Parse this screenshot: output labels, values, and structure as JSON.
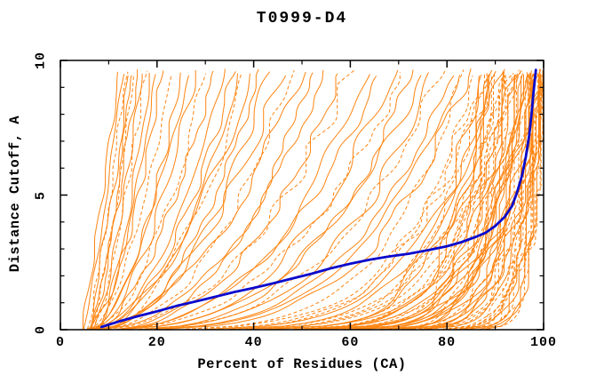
{
  "title": "T0999-D4",
  "chart_data": {
    "type": "line",
    "title": "T0999-D4",
    "xlabel": "Percent of Residues (CA)",
    "ylabel": "Distance Cutoff, A",
    "xlim": [
      0,
      100
    ],
    "ylim": [
      0,
      10
    ],
    "grid": false,
    "legend": "none",
    "box_ticks_mirrored": true,
    "xticks": {
      "major": [
        0,
        20,
        40,
        60,
        80,
        100
      ],
      "minor": [
        10,
        30,
        50,
        70,
        90
      ]
    },
    "yticks": {
      "major": [
        0,
        5,
        10
      ],
      "minor": [
        1,
        2,
        3,
        4,
        6,
        7,
        8,
        9
      ]
    },
    "colors": {
      "ensemble": "#ff8512",
      "highlight": "#0a0acd",
      "axis": "#000000",
      "background": "#ffffff"
    },
    "highlight_series": {
      "name": "highlighted-model-curve",
      "color": "#0a0acd",
      "points": [
        [
          8.5,
          0.1
        ],
        [
          12,
          0.3
        ],
        [
          16,
          0.5
        ],
        [
          20,
          0.68
        ],
        [
          24,
          0.88
        ],
        [
          28,
          1.05
        ],
        [
          32,
          1.22
        ],
        [
          36,
          1.4
        ],
        [
          40,
          1.55
        ],
        [
          44,
          1.72
        ],
        [
          48,
          1.9
        ],
        [
          52,
          2.08
        ],
        [
          56,
          2.28
        ],
        [
          60,
          2.45
        ],
        [
          64,
          2.6
        ],
        [
          68,
          2.72
        ],
        [
          72,
          2.82
        ],
        [
          76,
          2.95
        ],
        [
          80,
          3.1
        ],
        [
          83,
          3.25
        ],
        [
          86,
          3.45
        ],
        [
          88,
          3.6
        ],
        [
          90,
          3.85
        ],
        [
          92,
          4.2
        ],
        [
          93.5,
          4.6
        ],
        [
          94.5,
          5.1
        ],
        [
          95.5,
          5.7
        ],
        [
          96.3,
          6.4
        ],
        [
          97,
          7.2
        ],
        [
          97.5,
          8.0
        ],
        [
          97.9,
          8.8
        ],
        [
          98.2,
          9.3
        ],
        [
          98.4,
          9.65
        ]
      ]
    },
    "ensemble_series": {
      "name": "model-curves",
      "color": "#ff8512",
      "count": 104,
      "y_top": 9.55,
      "curve_params_format": [
        "x_at_bottom_pct",
        "x_at_top_pct",
        "shape_exponent",
        "dashed"
      ],
      "curves": [
        [
          5,
          13,
          0.9,
          0
        ],
        [
          5.5,
          13.6,
          0.8,
          1
        ],
        [
          5.8,
          14.2,
          0.85,
          0
        ],
        [
          6,
          14.8,
          0.7,
          0
        ],
        [
          6.2,
          15.3,
          0.75,
          1
        ],
        [
          6.5,
          16,
          0.8,
          0
        ],
        [
          6.8,
          16.8,
          0.7,
          0
        ],
        [
          7,
          17.6,
          0.75,
          1
        ],
        [
          7.4,
          18.6,
          0.65,
          0
        ],
        [
          7.8,
          19.8,
          0.7,
          0
        ],
        [
          4.5,
          12.2,
          0.95,
          0
        ],
        [
          5,
          21,
          0.55,
          0
        ],
        [
          6,
          23,
          0.6,
          1
        ],
        [
          5,
          25,
          0.5,
          0
        ],
        [
          7,
          26.5,
          0.65,
          0
        ],
        [
          6,
          28,
          0.55,
          0
        ],
        [
          5,
          30,
          0.5,
          1
        ],
        [
          7,
          32,
          0.6,
          0
        ],
        [
          6,
          34,
          0.5,
          0
        ],
        [
          8,
          36,
          0.55,
          0
        ],
        [
          5,
          37,
          0.45,
          0
        ],
        [
          7,
          38.5,
          0.5,
          1
        ],
        [
          6,
          40,
          0.55,
          0
        ],
        [
          8,
          41.5,
          0.5,
          0
        ],
        [
          6,
          43,
          0.45,
          0
        ],
        [
          5,
          46,
          0.5,
          0
        ],
        [
          7,
          48,
          0.45,
          1
        ],
        [
          6,
          50,
          0.5,
          0
        ],
        [
          8,
          52,
          0.4,
          0
        ],
        [
          6,
          55,
          0.45,
          0
        ],
        [
          7,
          58,
          0.4,
          0
        ],
        [
          5,
          60,
          0.42,
          1
        ],
        [
          8,
          63,
          0.38,
          0
        ],
        [
          6,
          66,
          0.4,
          0
        ],
        [
          7,
          69,
          0.35,
          0
        ],
        [
          5,
          71,
          0.38,
          1
        ],
        [
          8,
          73,
          0.33,
          0
        ],
        [
          6,
          75,
          0.36,
          0
        ],
        [
          7,
          77,
          0.3,
          0
        ],
        [
          6,
          79,
          0.32,
          1
        ],
        [
          8,
          81,
          0.3,
          0
        ],
        [
          6,
          82.5,
          0.28,
          0
        ],
        [
          7,
          83.5,
          0.22,
          1
        ],
        [
          4,
          84.5,
          0.25,
          0
        ],
        [
          6,
          85.5,
          0.18,
          1
        ],
        [
          5,
          86.5,
          0.12,
          0
        ],
        [
          7,
          87,
          0.2,
          1
        ],
        [
          4,
          87.5,
          0.09,
          0
        ],
        [
          8,
          88,
          0.15,
          1
        ],
        [
          5,
          88.4,
          0.06,
          0
        ],
        [
          6,
          88.8,
          0.22,
          1
        ],
        [
          4,
          89.1,
          0.1,
          0
        ],
        [
          7,
          89.4,
          0.05,
          1
        ],
        [
          5,
          89.7,
          0.17,
          0
        ],
        [
          6,
          90,
          0.08,
          1
        ],
        [
          4,
          90.3,
          0.13,
          0
        ],
        [
          8,
          90.6,
          0.04,
          1
        ],
        [
          5,
          90.9,
          0.2,
          0
        ],
        [
          6,
          91.2,
          0.11,
          1
        ],
        [
          4,
          91.5,
          0.07,
          0
        ],
        [
          7,
          91.8,
          0.16,
          1
        ],
        [
          5,
          92.1,
          0.05,
          0
        ],
        [
          6,
          92.4,
          0.12,
          1
        ],
        [
          4,
          92.7,
          0.09,
          0
        ],
        [
          8,
          93,
          0.18,
          1
        ],
        [
          5,
          93.3,
          0.06,
          0
        ],
        [
          6,
          93.6,
          0.14,
          1
        ],
        [
          4,
          93.9,
          0.04,
          0
        ],
        [
          7,
          94.2,
          0.1,
          1
        ],
        [
          5,
          94.5,
          0.07,
          0
        ],
        [
          6,
          94.8,
          0.16,
          1
        ],
        [
          4,
          95.1,
          0.05,
          0
        ],
        [
          8,
          95.4,
          0.12,
          1
        ],
        [
          5,
          95.7,
          0.08,
          0
        ],
        [
          6,
          96,
          0.04,
          1
        ],
        [
          4,
          96.2,
          0.14,
          0
        ],
        [
          7,
          96.4,
          0.06,
          1
        ],
        [
          5,
          96.6,
          0.1,
          0
        ],
        [
          6,
          96.8,
          0.03,
          1
        ],
        [
          4,
          97,
          0.12,
          0
        ],
        [
          8,
          97.2,
          0.05,
          1
        ],
        [
          5,
          97.4,
          0.08,
          0
        ],
        [
          6,
          97.6,
          0.03,
          1
        ],
        [
          4,
          97.8,
          0.11,
          0
        ],
        [
          7,
          98,
          0.05,
          1
        ],
        [
          5,
          98.2,
          0.07,
          0
        ],
        [
          6,
          98.4,
          0.03,
          1
        ],
        [
          4,
          98.6,
          0.09,
          0
        ],
        [
          8,
          98.8,
          0.04,
          1
        ],
        [
          5,
          99,
          0.06,
          0
        ],
        [
          6,
          99.1,
          0.03,
          1
        ],
        [
          4,
          99.2,
          0.08,
          0
        ],
        [
          7,
          99.3,
          0.04,
          1
        ],
        [
          5,
          99.4,
          0.05,
          0
        ],
        [
          6,
          99.5,
          0.02,
          1
        ],
        [
          4,
          99.3,
          0.1,
          0
        ],
        [
          8,
          98.9,
          0.03,
          1
        ],
        [
          5,
          98.5,
          0.06,
          0
        ],
        [
          3,
          99.4,
          0.02,
          0
        ],
        [
          4,
          99.2,
          0.025,
          1
        ],
        [
          3.5,
          99,
          0.03,
          0
        ],
        [
          4.5,
          98.7,
          0.02,
          0
        ],
        [
          3,
          98.3,
          0.035,
          1
        ],
        [
          4,
          97.9,
          0.025,
          0
        ]
      ]
    }
  }
}
